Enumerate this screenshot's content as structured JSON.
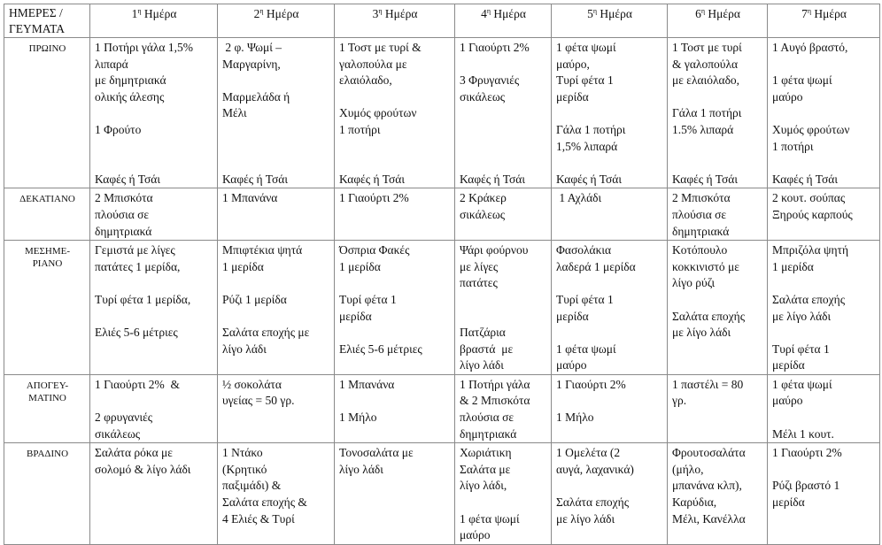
{
  "table": {
    "corner": "ΗΜΕΡΕΣ /\nΓΕΥΜΑΤΑ",
    "days": [
      {
        "num": "1",
        "sup": "η",
        "label": " Ημέρα"
      },
      {
        "num": "2",
        "sup": "η",
        "label": " Ημέρα"
      },
      {
        "num": "3",
        "sup": "η",
        "label": " Ημέρα"
      },
      {
        "num": "4",
        "sup": "η",
        "label": " Ημέρα"
      },
      {
        "num": "5",
        "sup": "η",
        "label": " Ημέρα"
      },
      {
        "num": "6",
        "sup": "η",
        "label": " Ημέρα"
      },
      {
        "num": "7",
        "sup": "η",
        "label": " Ημέρα"
      }
    ],
    "rows": [
      {
        "meal": "ΠΡΩΙΝΟ",
        "cells": [
          "1 Ποτήρι γάλα 1,5%\nλιπαρά\nμε δημητριακά\nολικής άλεσης\n\n1 Φρούτο\n\n\nΚαφές ή Τσάι",
          " 2 φ. Ψωμί –\nΜαργαρίνη,\n\nΜαρμελάδα ή\nΜέλι\n\n\n\nΚαφές ή Τσάι",
          "1 Τοστ με τυρί &\nγαλοπούλα με\nελαιόλαδο,\n\nΧυμός φρούτων\n1 ποτήρι\n\n\nΚαφές ή Τσάι",
          "1 Γιαούρτι 2%\n\n3 Φρυγανιές\nσικάλεως\n\n\n\n\nΚαφές ή Τσάι",
          "1 φέτα ψωμί\nμαύρο,\nΤυρί φέτα 1\nμερίδα\n\nΓάλα 1 ποτήρι\n1,5% λιπαρά\n\nΚαφές ή Τσάι",
          "1 Τοστ με τυρί\n& γαλοπούλα\nμε ελαιόλαδο,\n\nΓάλα 1 ποτήρι\n1.5% λιπαρά\n\n\nΚαφές ή Τσάι",
          "1 Αυγό βραστό,\n\n1 φέτα ψωμί\nμαύρο\n\nΧυμός φρούτων\n1 ποτήρι\n\nΚαφές ή Τσάι"
        ]
      },
      {
        "meal": "ΔΕΚΑΤΙΑΝΟ",
        "cells": [
          "2 Μπισκότα\nπλούσια σε\nδημητριακά",
          "1 Μπανάνα",
          "1 Γιαούρτι 2%",
          "2 Κράκερ\nσικάλεως",
          " 1 Αχλάδι",
          "2 Μπισκότα\nπλούσια σε\nδημητριακά",
          "2 κουτ. σούπας\nΞηρούς καρπούς"
        ]
      },
      {
        "meal": "ΜΕΣΗΜΕ-\nΡΙΑΝΟ",
        "cells": [
          "Γεμιστά με λίγες\nπατάτες 1 μερίδα,\n\nΤυρί φέτα 1 μερίδα,\n\nΕλιές 5-6 μέτριες",
          "Μπιφτέκια ψητά\n1 μερίδα\n\nΡύζι 1 μερίδα\n\nΣαλάτα εποχής με\nλίγο λάδι",
          "Όσπρια Φακές\n1 μερίδα\n\nΤυρί φέτα 1\nμερίδα\n\nΕλιές 5-6 μέτριες",
          "Ψάρι φούρνου\nμε λίγες\nπατάτες\n\n\nΠατζάρια\nβραστά  με\nλίγο λάδι",
          "Φασολάκια\nλαδερά 1 μερίδα\n\nΤυρί φέτα 1\nμερίδα\n\n1 φέτα ψωμί\nμαύρο",
          "Κοτόπουλο\nκοκκινιστό με\nλίγο ρύζι\n\nΣαλάτα εποχής\nμε λίγο λάδι",
          "Μπριζόλα ψητή\n1 μερίδα\n\nΣαλάτα εποχής\nμε λίγο λάδι\n\nΤυρί φέτα 1\nμερίδα"
        ]
      },
      {
        "meal": "ΑΠΟΓΕΥ-\nΜΑΤΙΝΟ",
        "cells": [
          "1 Γιαούρτι 2%  &\n\n2 φρυγανιές\nσικάλεως",
          "½ σοκολάτα\nυγείας = 50 γρ.",
          "1 Μπανάνα\n\n1 Μήλο",
          "1 Ποτήρι γάλα\n& 2 Μπισκότα\nπλούσια σε\nδημητριακά",
          "1 Γιαούρτι 2%\n\n1 Μήλο",
          "1 παστέλι = 80\nγρ.",
          "1 φέτα ψωμί\nμαύρο\n\nΜέλι 1 κουτ."
        ]
      },
      {
        "meal": "ΒΡΑΔΙΝΟ",
        "cells": [
          "Σαλάτα ρόκα με\nσολομό & λίγο λάδι",
          "1 Ντάκο\n(Κρητικό\nπαξιμάδι) &\nΣαλάτα εποχής &\n4 Ελιές & Τυρί",
          "Τονοσαλάτα με\nλίγο λάδι",
          "Χωριάτικη\nΣαλάτα με\nλίγο λάδι,\n\n1 φέτα ψωμί\nμαύρο",
          "1 Ομελέτα (2\nαυγά, λαχανικά)\n\nΣαλάτα εποχής\nμε λίγο λάδι",
          "Φρουτοσαλάτα\n(μήλο,\nμπανάνα κλπ),\nΚαρύδια,\nΜέλι, Κανέλλα",
          "1 Γιαούρτι 2%\n\nΡύζι βραστό 1\nμερίδα"
        ]
      }
    ]
  }
}
